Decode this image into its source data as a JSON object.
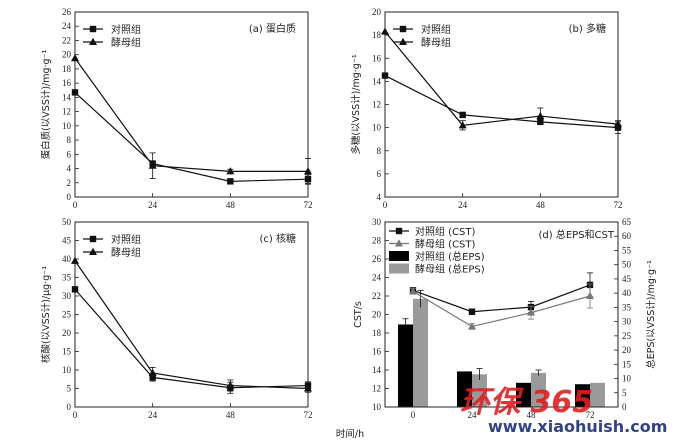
{
  "figure": {
    "shared_xlabel": "时间/h",
    "watermark": {
      "brand": "环保 365",
      "url": "www.xiaohuish.com"
    }
  },
  "colors": {
    "control": "#111111",
    "yeast": "#111111",
    "yeast_cst": "#777777",
    "yeast_eps": "#9a9a9a",
    "control_eps": "#000000"
  },
  "chart_data": [
    {
      "id": "a",
      "type": "line",
      "title": "(a) 蛋白质",
      "ylabel": "蛋白质(以VSS计)/mg·g⁻¹",
      "xlabel": "",
      "x": [
        0,
        24,
        48,
        72
      ],
      "xlim": [
        0,
        72
      ],
      "ylim": [
        0,
        26
      ],
      "yticks": [
        0,
        2,
        4,
        6,
        8,
        10,
        12,
        14,
        16,
        18,
        20,
        22,
        24,
        26
      ],
      "xticks": [
        "0",
        "24",
        "48",
        "72"
      ],
      "legend": "upper-left",
      "series": [
        {
          "name": "对照组",
          "marker": "square",
          "values": [
            14.7,
            4.7,
            2.2,
            2.5
          ],
          "errors": [
            0,
            0.3,
            0.2,
            0.6
          ]
        },
        {
          "name": "酵母组",
          "marker": "triangle",
          "values": [
            19.5,
            4.4,
            3.6,
            3.6
          ],
          "errors": [
            0,
            1.8,
            0.3,
            1.8
          ]
        }
      ]
    },
    {
      "id": "b",
      "type": "line",
      "title": "(b) 多糖",
      "ylabel": "多糖(以VSS计)/mg·g⁻¹",
      "xlabel": "",
      "x": [
        0,
        24,
        48,
        72
      ],
      "xlim": [
        0,
        72
      ],
      "ylim": [
        4,
        20
      ],
      "yticks": [
        4,
        6,
        8,
        10,
        12,
        14,
        16,
        18,
        20
      ],
      "xticks": [
        "0",
        "24",
        "48",
        "72"
      ],
      "legend": "upper-left",
      "series": [
        {
          "name": "对照组",
          "marker": "square",
          "values": [
            14.5,
            11.1,
            10.5,
            10.0
          ],
          "errors": [
            0,
            0.2,
            0.2,
            0.5
          ]
        },
        {
          "name": "酵母组",
          "marker": "triangle",
          "values": [
            18.3,
            10.2,
            11.0,
            10.3
          ],
          "errors": [
            0,
            0.4,
            0.7,
            0.3
          ]
        }
      ]
    },
    {
      "id": "c",
      "type": "line",
      "title": "(c) 核糖",
      "ylabel": "核酸(以VSS计)/μg·g⁻¹",
      "xlabel": "",
      "x": [
        0,
        24,
        48,
        72
      ],
      "xlim": [
        0,
        72
      ],
      "ylim": [
        0,
        50
      ],
      "yticks": [
        0,
        5,
        10,
        15,
        20,
        25,
        30,
        35,
        40,
        45,
        50
      ],
      "xticks": [
        "0",
        "24",
        "48",
        "72"
      ],
      "legend": "upper-left",
      "series": [
        {
          "name": "对照组",
          "marker": "square",
          "values": [
            31.8,
            8.0,
            5.2,
            5.8
          ],
          "errors": [
            0,
            1.0,
            1.5,
            1.0
          ]
        },
        {
          "name": "酵母组",
          "marker": "triangle",
          "values": [
            39.5,
            9.2,
            5.8,
            5.0
          ],
          "errors": [
            0,
            1.5,
            1.5,
            1.0
          ]
        }
      ]
    },
    {
      "id": "d",
      "type": "bar+line",
      "title": "(d) 总EPS和CST",
      "ylabel": "CST/s",
      "y2label": "总EPS(以VSS计)/mg·g⁻¹",
      "xlabel": "",
      "categories": [
        "0",
        "24",
        "48",
        "72"
      ],
      "ylim": [
        10,
        30
      ],
      "yticks": [
        10,
        12,
        14,
        16,
        18,
        20,
        22,
        24,
        26,
        28,
        30
      ],
      "y2lim": [
        0,
        65
      ],
      "y2ticks": [
        0,
        5,
        10,
        15,
        20,
        25,
        30,
        35,
        40,
        45,
        50,
        55,
        60,
        65
      ],
      "legend": "upper-left",
      "line_series": [
        {
          "name": "对照组 (CST)",
          "marker": "square",
          "values": [
            22.6,
            20.3,
            20.8,
            23.2
          ],
          "errors": [
            0.3,
            0.3,
            0.6,
            1.3
          ]
        },
        {
          "name": "酵母组 (CST)",
          "marker": "triangle",
          "values": [
            22.5,
            18.7,
            20.2,
            22.0
          ],
          "errors": [
            0.3,
            0.3,
            0.7,
            1.3
          ]
        }
      ],
      "bar_series": [
        {
          "name": "对照组 (总EPS)",
          "values": [
            29.0,
            12.5,
            8.5,
            8.0
          ],
          "errors": [
            2.0,
            0,
            0,
            0
          ]
        },
        {
          "name": "酵母组 (总EPS)",
          "values": [
            38.0,
            11.5,
            12.0,
            8.5
          ],
          "errors": [
            3.0,
            2.0,
            1.0,
            0
          ]
        }
      ]
    }
  ]
}
